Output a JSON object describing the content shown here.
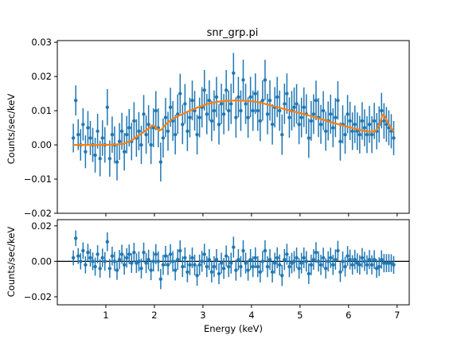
{
  "chart_data": [
    {
      "type": "scatter",
      "title": "snr_grp.pi",
      "xlabel": "",
      "ylabel": "Counts/sec/keV",
      "xlim": [
        0.0,
        7.25
      ],
      "ylim": [
        -0.02,
        0.0305
      ],
      "xticks": [
        1,
        2,
        3,
        4,
        5,
        6,
        7
      ],
      "show_xtick_labels": false,
      "yticks": [
        -0.02,
        -0.01,
        0.0,
        0.01,
        0.02,
        0.03
      ],
      "ytick_labels": [
        "−0.02",
        "−0.01",
        "0.00",
        "0.01",
        "0.02",
        "0.03"
      ],
      "grid": false,
      "colors": {
        "data": "#1f77b4",
        "model": "#ff7f0e"
      },
      "series": [
        {
          "kind": "errorbar",
          "x": [
            0.33,
            0.38,
            0.43,
            0.48,
            0.53,
            0.58,
            0.63,
            0.68,
            0.73,
            0.78,
            0.83,
            0.88,
            0.93,
            0.98,
            1.03,
            1.08,
            1.13,
            1.18,
            1.23,
            1.28,
            1.33,
            1.38,
            1.43,
            1.48,
            1.53,
            1.58,
            1.63,
            1.68,
            1.73,
            1.78,
            1.83,
            1.88,
            1.93,
            1.98,
            2.03,
            2.08,
            2.13,
            2.18,
            2.23,
            2.28,
            2.33,
            2.38,
            2.43,
            2.48,
            2.53,
            2.58,
            2.63,
            2.68,
            2.73,
            2.78,
            2.83,
            2.88,
            2.93,
            2.98,
            3.03,
            3.08,
            3.13,
            3.18,
            3.23,
            3.28,
            3.33,
            3.38,
            3.43,
            3.48,
            3.53,
            3.58,
            3.63,
            3.68,
            3.73,
            3.78,
            3.83,
            3.88,
            3.93,
            3.98,
            4.03,
            4.08,
            4.13,
            4.18,
            4.23,
            4.28,
            4.33,
            4.38,
            4.43,
            4.48,
            4.53,
            4.58,
            4.63,
            4.68,
            4.73,
            4.78,
            4.83,
            4.88,
            4.93,
            4.98,
            5.03,
            5.08,
            5.13,
            5.18,
            5.23,
            5.28,
            5.33,
            5.38,
            5.43,
            5.48,
            5.53,
            5.58,
            5.63,
            5.68,
            5.73,
            5.78,
            5.83,
            5.88,
            5.93,
            5.98,
            6.03,
            6.08,
            6.13,
            6.18,
            6.23,
            6.28,
            6.33,
            6.38,
            6.43,
            6.48,
            6.53,
            6.58,
            6.63,
            6.68,
            6.73,
            6.78,
            6.83,
            6.88,
            6.93
          ],
          "y": [
            0.002,
            0.013,
            0.003,
            0.0,
            0.006,
            -0.002,
            0.005,
            0.002,
            0.0,
            -0.003,
            0.004,
            -0.004,
            0.002,
            0.0,
            0.011,
            -0.004,
            0.003,
            0.0,
            -0.005,
            0.001,
            0.004,
            -0.002,
            0.003,
            0.005,
            0.001,
            0.007,
            0.002,
            0.004,
            0.0,
            0.009,
            0.003,
            0.006,
            0.0,
            0.005,
            0.01,
            0.005,
            -0.005,
            0.002,
            0.008,
            0.004,
            0.011,
            0.007,
            0.003,
            0.009,
            0.015,
            0.006,
            0.012,
            0.004,
            0.008,
            0.013,
            0.01,
            0.003,
            0.008,
            0.011,
            0.016,
            0.009,
            0.013,
            0.007,
            0.01,
            0.014,
            0.006,
            0.012,
            0.009,
            0.016,
            0.01,
            0.012,
            0.021,
            0.008,
            0.014,
            0.01,
            0.019,
            0.012,
            0.008,
            0.014,
            0.01,
            0.015,
            0.01,
            0.007,
            0.013,
            0.019,
            0.009,
            0.013,
            0.006,
            0.011,
            0.014,
            0.01,
            0.003,
            0.012,
            0.015,
            0.008,
            0.01,
            0.011,
            0.012,
            0.006,
            0.008,
            0.011,
            0.009,
            0.002,
            0.007,
            0.009,
            0.013,
            0.008,
            0.006,
            0.01,
            0.004,
            0.007,
            0.009,
            0.005,
            0.008,
            0.013,
            0.001,
            0.006,
            0.003,
            0.009,
            0.007,
            0.004,
            0.006,
            0.004,
            0.003,
            0.007,
            0.005,
            0.003,
            0.006,
            0.003,
            0.007,
            0.004,
            0.006,
            0.01,
            0.007,
            0.006,
            0.005,
            0.004,
            0.002
          ],
          "yerr": [
            0.0042,
            0.0044,
            0.0045,
            0.0046,
            0.0047,
            0.0048,
            0.0049,
            0.005,
            0.005,
            0.0051,
            0.0051,
            0.0052,
            0.0052,
            0.0052,
            0.0053,
            0.0053,
            0.0053,
            0.0054,
            0.0054,
            0.0054,
            0.0054,
            0.0055,
            0.0055,
            0.0055,
            0.0055,
            0.0055,
            0.0055,
            0.0056,
            0.0056,
            0.0056,
            0.0056,
            0.0056,
            0.0056,
            0.0057,
            0.0057,
            0.0057,
            0.0057,
            0.0057,
            0.0057,
            0.0057,
            0.0057,
            0.0058,
            0.0058,
            0.0058,
            0.0058,
            0.0058,
            0.0058,
            0.0058,
            0.0058,
            0.0058,
            0.0058,
            0.0058,
            0.0058,
            0.0059,
            0.0059,
            0.0059,
            0.0059,
            0.0059,
            0.0059,
            0.0059,
            0.0059,
            0.0059,
            0.0059,
            0.0059,
            0.0059,
            0.0059,
            0.0059,
            0.0059,
            0.0059,
            0.0059,
            0.0059,
            0.0059,
            0.0059,
            0.0059,
            0.0059,
            0.0059,
            0.0059,
            0.0059,
            0.0059,
            0.0059,
            0.0059,
            0.0059,
            0.0059,
            0.0059,
            0.0059,
            0.0059,
            0.0059,
            0.0059,
            0.0059,
            0.0059,
            0.0058,
            0.0058,
            0.0058,
            0.0058,
            0.0058,
            0.0058,
            0.0058,
            0.0058,
            0.0058,
            0.0058,
            0.0058,
            0.0057,
            0.0057,
            0.0057,
            0.0057,
            0.0057,
            0.0057,
            0.0057,
            0.0057,
            0.0056,
            0.0056,
            0.0056,
            0.0056,
            0.0056,
            0.0056,
            0.0055,
            0.0055,
            0.0055,
            0.0055,
            0.0055,
            0.0054,
            0.0054,
            0.0054,
            0.0054,
            0.0053,
            0.0053,
            0.0053,
            0.0052,
            0.0052,
            0.0051,
            0.0051,
            0.005,
            0.005
          ]
        },
        {
          "kind": "line",
          "x": [
            0.33,
            0.5,
            0.8,
            1.0,
            1.2,
            1.35,
            1.45,
            1.55,
            1.65,
            1.75,
            1.8,
            1.85,
            1.9,
            1.95,
            2.0,
            2.05,
            2.1,
            2.15,
            2.2,
            2.3,
            2.4,
            2.5,
            2.7,
            2.9,
            3.1,
            3.3,
            3.5,
            3.7,
            4.0,
            4.2,
            4.4,
            4.6,
            4.8,
            5.0,
            5.2,
            5.4,
            5.6,
            5.8,
            6.0,
            6.2,
            6.35,
            6.45,
            6.55,
            6.6,
            6.65,
            6.7,
            6.75,
            6.8,
            6.85,
            6.9,
            6.93
          ],
          "y": [
            0.0,
            0.0,
            0.0,
            0.0,
            0.0001,
            0.0003,
            0.0008,
            0.0015,
            0.0025,
            0.0035,
            0.004,
            0.0045,
            0.005,
            0.0057,
            0.0055,
            0.0048,
            0.0042,
            0.0045,
            0.0055,
            0.0068,
            0.0078,
            0.0085,
            0.0098,
            0.011,
            0.012,
            0.0126,
            0.0129,
            0.013,
            0.0128,
            0.0123,
            0.0115,
            0.0108,
            0.01,
            0.0093,
            0.0085,
            0.0077,
            0.0068,
            0.006,
            0.0052,
            0.0045,
            0.004,
            0.0038,
            0.004,
            0.005,
            0.0065,
            0.0088,
            0.0084,
            0.0068,
            0.0055,
            0.0045,
            0.004
          ]
        }
      ]
    },
    {
      "type": "scatter",
      "title": "",
      "xlabel": "Energy (keV)",
      "ylabel": "Counts/sec/keV",
      "xlim": [
        0.0,
        7.25
      ],
      "ylim": [
        -0.0245,
        0.0235
      ],
      "xticks": [
        1,
        2,
        3,
        4,
        5,
        6,
        7
      ],
      "xtick_labels": [
        "1",
        "2",
        "3",
        "4",
        "5",
        "6",
        "7"
      ],
      "yticks": [
        -0.02,
        0.0,
        0.02
      ],
      "ytick_labels": [
        "−0.02",
        "0.00",
        "0.02"
      ],
      "grid": false,
      "zero_line": true,
      "colors": {
        "data": "#1f77b4",
        "zero_line": "#000000"
      },
      "series": [
        {
          "kind": "errorbar",
          "x": [
            0.33,
            0.38,
            0.43,
            0.48,
            0.53,
            0.58,
            0.63,
            0.68,
            0.73,
            0.78,
            0.83,
            0.88,
            0.93,
            0.98,
            1.03,
            1.08,
            1.13,
            1.18,
            1.23,
            1.28,
            1.33,
            1.38,
            1.43,
            1.48,
            1.53,
            1.58,
            1.63,
            1.68,
            1.73,
            1.78,
            1.83,
            1.88,
            1.93,
            1.98,
            2.03,
            2.08,
            2.13,
            2.18,
            2.23,
            2.28,
            2.33,
            2.38,
            2.43,
            2.48,
            2.53,
            2.58,
            2.63,
            2.68,
            2.73,
            2.78,
            2.83,
            2.88,
            2.93,
            2.98,
            3.03,
            3.08,
            3.13,
            3.18,
            3.23,
            3.28,
            3.33,
            3.38,
            3.43,
            3.48,
            3.53,
            3.58,
            3.63,
            3.68,
            3.73,
            3.78,
            3.83,
            3.88,
            3.93,
            3.98,
            4.03,
            4.08,
            4.13,
            4.18,
            4.23,
            4.28,
            4.33,
            4.38,
            4.43,
            4.48,
            4.53,
            4.58,
            4.63,
            4.68,
            4.73,
            4.78,
            4.83,
            4.88,
            4.93,
            4.98,
            5.03,
            5.08,
            5.13,
            5.18,
            5.23,
            5.28,
            5.33,
            5.38,
            5.43,
            5.48,
            5.53,
            5.58,
            5.63,
            5.68,
            5.73,
            5.78,
            5.83,
            5.88,
            5.93,
            5.98,
            6.03,
            6.08,
            6.13,
            6.18,
            6.23,
            6.28,
            6.33,
            6.38,
            6.43,
            6.48,
            6.53,
            6.58,
            6.63,
            6.68,
            6.73,
            6.78,
            6.83,
            6.88,
            6.93
          ],
          "y": [
            0.002,
            0.013,
            0.003,
            0.0,
            0.006,
            -0.002,
            0.005,
            0.002,
            0.0,
            -0.003,
            0.004,
            -0.004,
            0.002,
            0.0,
            0.011,
            -0.004,
            0.003,
            0.0,
            -0.005,
            0.001,
            0.004,
            -0.002,
            0.002,
            0.004,
            -0.001,
            0.005,
            -0.001,
            0.0,
            -0.004,
            0.005,
            -0.001,
            0.001,
            -0.005,
            0.0,
            0.004,
            0.0,
            -0.01,
            -0.002,
            0.003,
            -0.002,
            0.004,
            0.0,
            -0.005,
            0.001,
            0.006,
            -0.003,
            0.002,
            -0.006,
            -0.002,
            0.002,
            -0.002,
            -0.008,
            -0.002,
            0.0,
            0.004,
            -0.003,
            0.001,
            -0.006,
            -0.003,
            0.001,
            -0.007,
            -0.001,
            -0.004,
            0.003,
            -0.003,
            -0.001,
            0.008,
            -0.005,
            0.001,
            -0.003,
            0.006,
            -0.001,
            -0.005,
            0.001,
            -0.003,
            0.002,
            -0.003,
            -0.006,
            0.0,
            0.006,
            -0.003,
            0.001,
            -0.006,
            -0.001,
            0.002,
            -0.002,
            -0.008,
            0.001,
            0.004,
            -0.003,
            -0.001,
            0.0,
            0.002,
            -0.004,
            -0.001,
            0.002,
            0.0,
            -0.007,
            -0.002,
            0.001,
            0.005,
            0.0,
            -0.002,
            0.002,
            -0.004,
            0.0,
            0.002,
            -0.002,
            0.001,
            0.006,
            -0.006,
            0.0,
            -0.003,
            0.003,
            0.001,
            -0.002,
            0.001,
            -0.001,
            -0.002,
            0.002,
            0.0,
            -0.002,
            0.001,
            -0.002,
            0.001,
            -0.004,
            -0.003,
            0.001,
            -0.001,
            -0.001,
            -0.001,
            -0.001,
            -0.002
          ],
          "yerr": [
            0.0042,
            0.0044,
            0.0045,
            0.0046,
            0.0047,
            0.0048,
            0.0049,
            0.005,
            0.005,
            0.0051,
            0.0051,
            0.0052,
            0.0052,
            0.0052,
            0.0053,
            0.0053,
            0.0053,
            0.0054,
            0.0054,
            0.0054,
            0.0054,
            0.0055,
            0.0055,
            0.0055,
            0.0055,
            0.0055,
            0.0055,
            0.0056,
            0.0056,
            0.0056,
            0.0056,
            0.0056,
            0.0056,
            0.0057,
            0.0057,
            0.0057,
            0.0057,
            0.0057,
            0.0057,
            0.0057,
            0.0057,
            0.0058,
            0.0058,
            0.0058,
            0.0058,
            0.0058,
            0.0058,
            0.0058,
            0.0058,
            0.0058,
            0.0058,
            0.0058,
            0.0058,
            0.0059,
            0.0059,
            0.0059,
            0.0059,
            0.0059,
            0.0059,
            0.0059,
            0.0059,
            0.0059,
            0.0059,
            0.0059,
            0.0059,
            0.0059,
            0.0059,
            0.0059,
            0.0059,
            0.0059,
            0.0059,
            0.0059,
            0.0059,
            0.0059,
            0.0059,
            0.0059,
            0.0059,
            0.0059,
            0.0059,
            0.0059,
            0.0059,
            0.0059,
            0.0059,
            0.0059,
            0.0059,
            0.0059,
            0.0059,
            0.0059,
            0.0059,
            0.0059,
            0.0058,
            0.0058,
            0.0058,
            0.0058,
            0.0058,
            0.0058,
            0.0058,
            0.0058,
            0.0058,
            0.0058,
            0.0058,
            0.0057,
            0.0057,
            0.0057,
            0.0057,
            0.0057,
            0.0057,
            0.0057,
            0.0057,
            0.0056,
            0.0056,
            0.0056,
            0.0056,
            0.0056,
            0.0056,
            0.0055,
            0.0055,
            0.0055,
            0.0055,
            0.0055,
            0.0054,
            0.0054,
            0.0054,
            0.0054,
            0.0053,
            0.0053,
            0.0053,
            0.0052,
            0.0052,
            0.0051,
            0.0051,
            0.005,
            0.005
          ]
        }
      ]
    }
  ]
}
